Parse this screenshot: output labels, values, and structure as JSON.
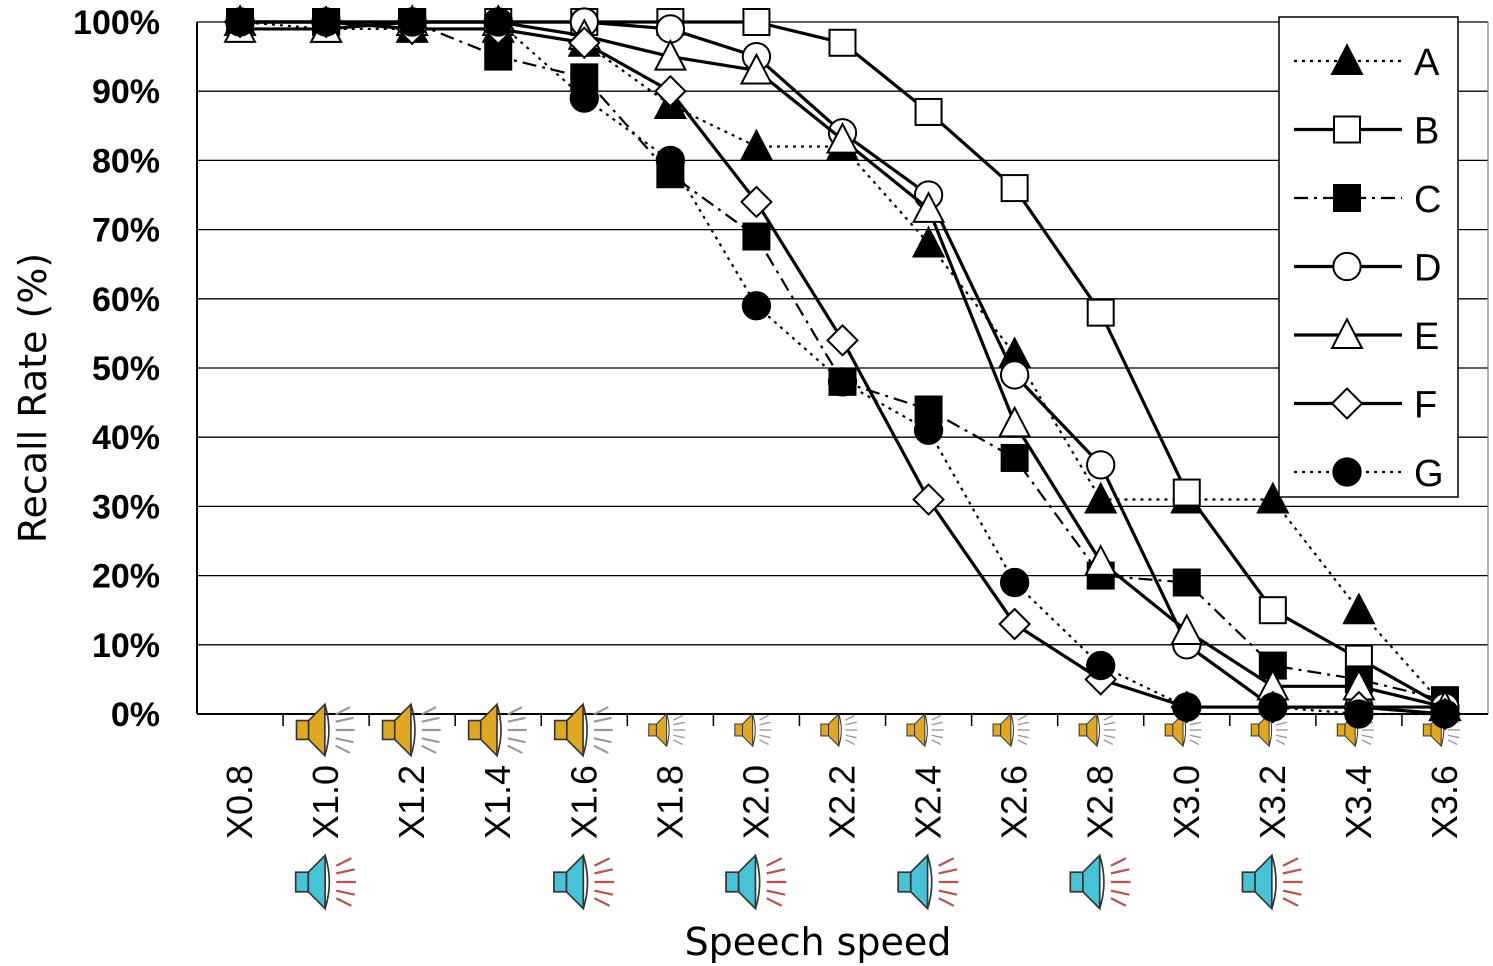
{
  "chart_data": {
    "type": "line",
    "xlabel": "Speech speed",
    "ylabel": "Recall Rate (%)",
    "x": [
      "X0.8",
      "X1.0",
      "X1.2",
      "X1.4",
      "X1.6",
      "X1.8",
      "X2.0",
      "X2.2",
      "X2.4",
      "X2.6",
      "X2.8",
      "X3.0",
      "X3.2",
      "X3.4",
      "X3.6"
    ],
    "y_ticks": [
      "0%",
      "10%",
      "20%",
      "30%",
      "40%",
      "50%",
      "60%",
      "70%",
      "80%",
      "90%",
      "100%"
    ],
    "ylim": [
      0,
      100
    ],
    "grid": "horizontal",
    "legend_position": "top-right",
    "series": [
      {
        "name": "A",
        "marker": "triangle",
        "filled": true,
        "line": "dotted",
        "values": [
          100,
          99,
          99,
          99,
          97,
          88,
          82,
          82,
          68,
          52,
          31,
          31,
          31,
          15,
          1
        ]
      },
      {
        "name": "B",
        "marker": "square",
        "filled": false,
        "line": "solid",
        "values": [
          100,
          100,
          100,
          100,
          100,
          100,
          100,
          97,
          87,
          76,
          58,
          32,
          15,
          8,
          1
        ]
      },
      {
        "name": "C",
        "marker": "square",
        "filled": true,
        "line": "dashdot",
        "values": [
          100,
          100,
          100,
          95,
          92,
          78,
          69,
          48,
          44,
          37,
          20,
          19,
          7,
          5,
          2
        ]
      },
      {
        "name": "D",
        "marker": "circle",
        "filled": false,
        "line": "solid",
        "values": [
          100,
          100,
          100,
          100,
          100,
          99,
          95,
          84,
          75,
          49,
          36,
          10,
          1,
          1,
          1
        ]
      },
      {
        "name": "E",
        "marker": "triangle",
        "filled": false,
        "line": "solid",
        "values": [
          99,
          99,
          100,
          100,
          98,
          95,
          93,
          83,
          73,
          42,
          22,
          12,
          4,
          4,
          1
        ]
      },
      {
        "name": "F",
        "marker": "diamond",
        "filled": false,
        "line": "solid",
        "values": [
          100,
          100,
          99,
          99,
          97,
          90,
          74,
          54,
          31,
          13,
          5,
          1,
          1,
          1,
          0
        ]
      },
      {
        "name": "G",
        "marker": "circle",
        "filled": true,
        "line": "dotted",
        "values": [
          100,
          100,
          100,
          100,
          89,
          80,
          59,
          48,
          41,
          19,
          7,
          1,
          1,
          0,
          0
        ]
      }
    ],
    "speaker_icons_row1": [
      "speaker-icon",
      "speaker-icon",
      "speaker-icon",
      "speaker-icon",
      "speaker-icon",
      "speaker-icon",
      "speaker-icon",
      "speaker-icon",
      "speaker-icon",
      "speaker-icon",
      "speaker-icon",
      "speaker-icon",
      "speaker-icon",
      "speaker-icon"
    ],
    "speaker_icons_row2": [
      "loudspeaker-icon",
      "loudspeaker-icon",
      "loudspeaker-icon",
      "loudspeaker-icon",
      "loudspeaker-icon",
      "loudspeaker-icon"
    ],
    "colors": {
      "line": "#000000",
      "grid": "#000000",
      "speaker_body": "#e0a820",
      "loudspeaker_body": "#46c3d6",
      "loudspeaker_rays": "#c0504d"
    }
  }
}
